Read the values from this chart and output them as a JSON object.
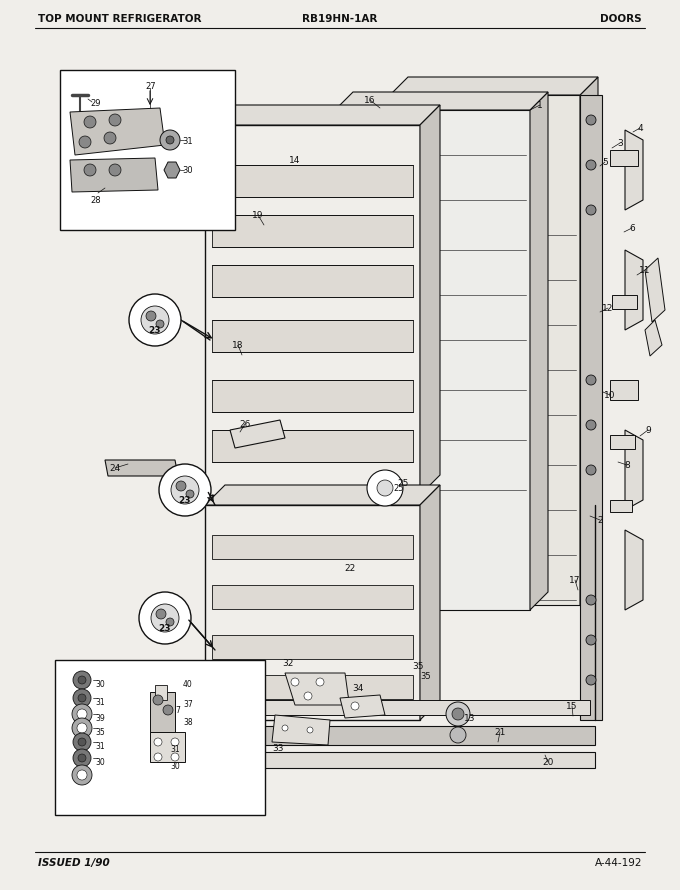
{
  "title_left": "TOP MOUNT REFRIGERATOR",
  "title_center": "RB19HN-1AR",
  "title_right": "DOORS",
  "footer_left": "ISSUED 1/90",
  "footer_right": "A-44-192",
  "bg_color": "#f0eeea",
  "text_color": "#111111",
  "page_bg": "#f0eeea",
  "diagram_bg": "#f5f3ef"
}
